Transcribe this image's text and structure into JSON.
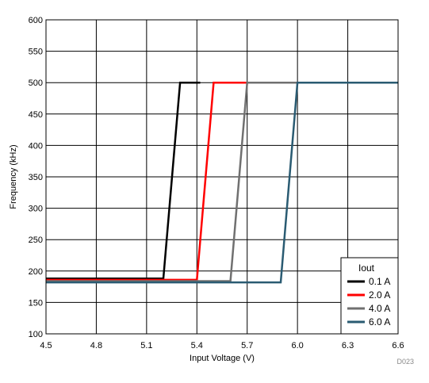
{
  "chart_data": {
    "type": "line",
    "xlabel": "Input Voltage (V)",
    "ylabel": "Frequency (kHz)",
    "xlim": [
      4.5,
      6.6
    ],
    "ylim": [
      100,
      600
    ],
    "x_ticks": [
      "4.5",
      "4.8",
      "5.1",
      "5.4",
      "5.7",
      "6.0",
      "6.3",
      "6.6"
    ],
    "y_ticks": [
      "100",
      "150",
      "200",
      "250",
      "300",
      "350",
      "400",
      "450",
      "500",
      "550",
      "600"
    ],
    "grid": true,
    "legend": {
      "title": "Iout",
      "placement": "bottom-right"
    },
    "series": [
      {
        "name": "0.1 A",
        "color": "#000000",
        "x": [
          4.5,
          5.2,
          5.3,
          5.42
        ],
        "y": [
          188,
          188,
          500,
          500
        ]
      },
      {
        "name": "2.0 A",
        "color": "#ff0000",
        "x": [
          4.5,
          5.4,
          5.5,
          5.71
        ],
        "y": [
          186,
          186,
          500,
          500
        ]
      },
      {
        "name": "4.0 A",
        "color": "#707070",
        "x": [
          4.5,
          5.6,
          5.7,
          6.0
        ],
        "y": [
          184,
          184,
          500,
          500
        ]
      },
      {
        "name": "6.0 A",
        "color": "#2a5b72",
        "x": [
          4.5,
          5.9,
          6.0,
          6.6
        ],
        "y": [
          182,
          182,
          500,
          500
        ]
      }
    ],
    "annotation": "D023"
  }
}
